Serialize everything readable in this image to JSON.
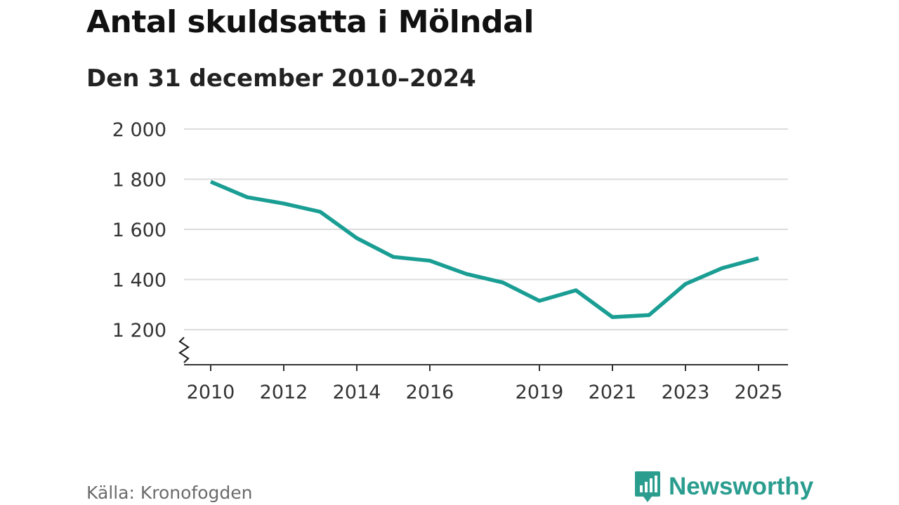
{
  "title": "Antal skuldsatta i Mölndal",
  "subtitle": "Den 31 december 2010–2024",
  "source": "Källa: Kronofogden",
  "brand": {
    "name": "Newsworthy",
    "icon": "newsworthy-logo-icon"
  },
  "colors": {
    "line": "#1a9e94",
    "grid": "#dcdcdc",
    "axis": "#333333",
    "brand": "#2a9d8f"
  },
  "chart_data": {
    "type": "line",
    "title": "Antal skuldsatta i Mölndal",
    "subtitle": "Den 31 december 2010–2024",
    "xlabel": "",
    "ylabel": "",
    "ylim": [
      1060,
      2000
    ],
    "xlim": [
      2009.5,
      2025.4
    ],
    "axis_break": true,
    "grid": true,
    "yticks": [
      {
        "value": 1200,
        "label": "1 200"
      },
      {
        "value": 1400,
        "label": "1 400"
      },
      {
        "value": 1600,
        "label": "1 600"
      },
      {
        "value": 1800,
        "label": "1 800"
      },
      {
        "value": 2000,
        "label": "2 000"
      }
    ],
    "xticks": [
      {
        "value": 2010,
        "label": "2010"
      },
      {
        "value": 2012,
        "label": "2012"
      },
      {
        "value": 2014,
        "label": "2014"
      },
      {
        "value": 2016,
        "label": "2016"
      },
      {
        "value": 2019,
        "label": "2019"
      },
      {
        "value": 2021,
        "label": "2021"
      },
      {
        "value": 2023,
        "label": "2023"
      },
      {
        "value": 2025,
        "label": "2025"
      }
    ],
    "series": [
      {
        "name": "Antal skuldsatta",
        "x": [
          2010,
          2011,
          2012,
          2013,
          2014,
          2015,
          2016,
          2017,
          2018,
          2019,
          2020,
          2021,
          2022,
          2023,
          2024,
          2025
        ],
        "values": [
          1790,
          1728,
          1703,
          1670,
          1565,
          1490,
          1475,
          1422,
          1388,
          1315,
          1357,
          1250,
          1258,
          1382,
          1445,
          1485
        ]
      }
    ]
  }
}
